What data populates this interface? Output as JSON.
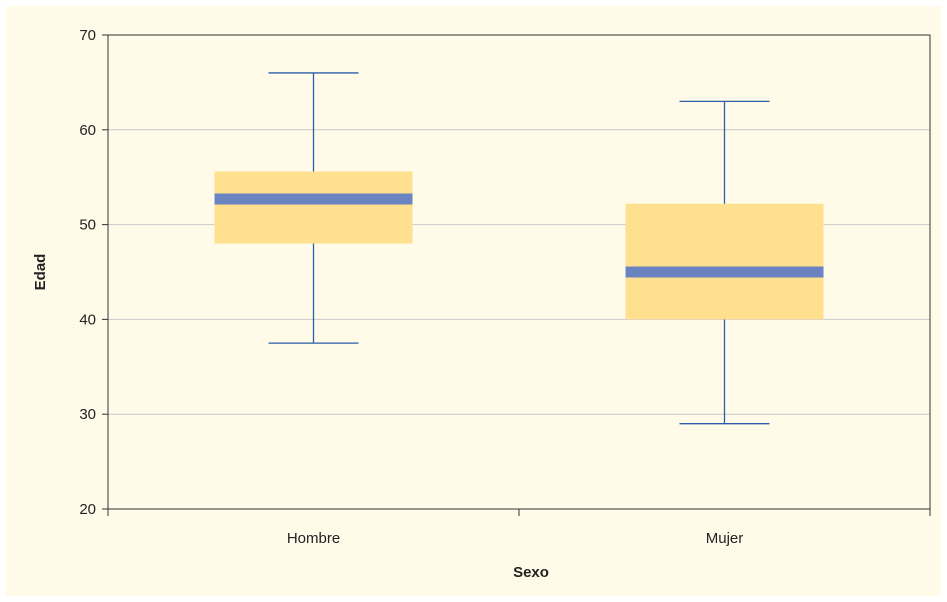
{
  "chart_data": {
    "type": "boxplot",
    "title": "",
    "xlabel": "Sexo",
    "ylabel": "Edad",
    "ylim": [
      20,
      70
    ],
    "yticks": [
      20,
      30,
      40,
      50,
      60,
      70
    ],
    "grid": true,
    "categories": [
      "Hombre",
      "Mujer"
    ],
    "boxes": [
      {
        "category": "Hombre",
        "min": 37.5,
        "q1": 48,
        "median": 52.7,
        "q3": 55.6,
        "max": 66
      },
      {
        "category": "Mujer",
        "min": 29,
        "q1": 40,
        "median": 45,
        "q3": 52.2,
        "max": 63
      }
    ],
    "colors": {
      "background": "#fffbe8",
      "box_fill": "#ffe08f",
      "median": "#6a84c2",
      "whisker": "#2a5ea8",
      "grid": "#c9c9c9",
      "axis": "#333333"
    }
  }
}
